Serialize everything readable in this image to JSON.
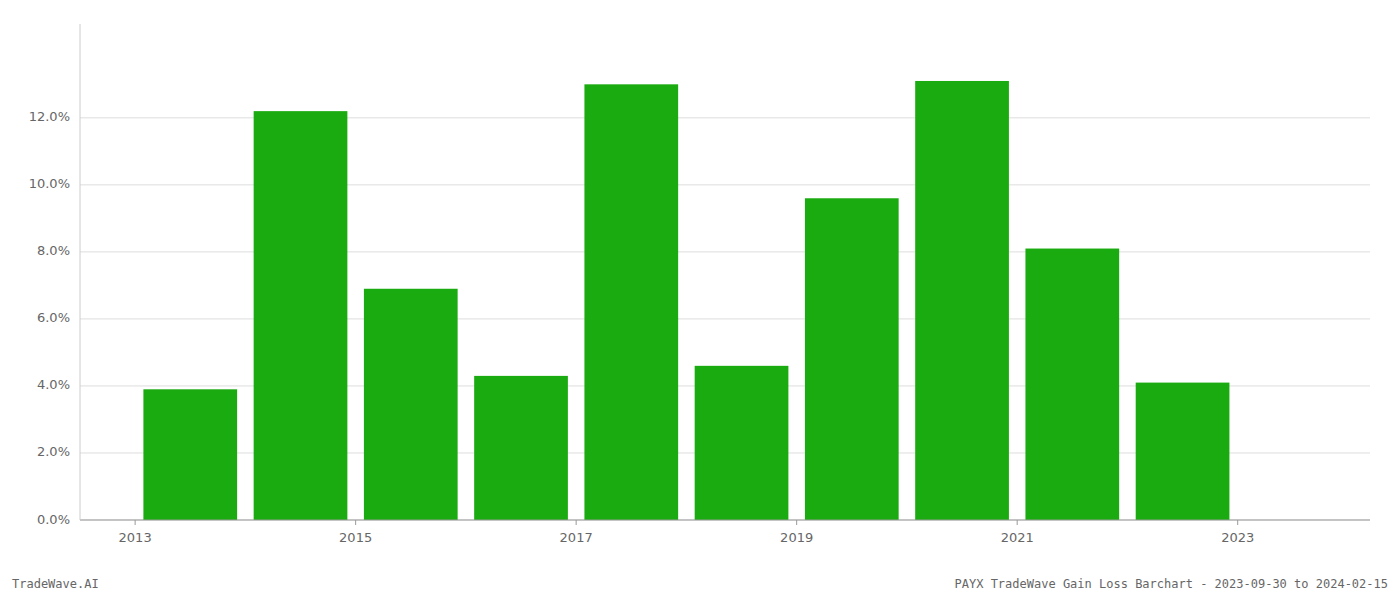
{
  "chart_data": {
    "type": "bar",
    "x": [
      2013.5,
      2014.5,
      2015.5,
      2016.5,
      2017.5,
      2018.5,
      2019.5,
      2020.5,
      2021.5,
      2022.5,
      2023.5
    ],
    "values": [
      0.039,
      0.122,
      0.069,
      0.043,
      0.13,
      0.046,
      0.096,
      0.131,
      0.081,
      0.041,
      0.0
    ],
    "color": "#1aab10",
    "xlim": [
      2012.5,
      2024.2
    ],
    "xticks": [
      2013,
      2015,
      2017,
      2019,
      2021,
      2023
    ],
    "ylim": [
      0,
      0.148
    ],
    "yticks": [
      {
        "value": 0.0,
        "label": "0.0%"
      },
      {
        "value": 0.02,
        "label": "2.0%"
      },
      {
        "value": 0.04,
        "label": "4.0%"
      },
      {
        "value": 0.06,
        "label": "6.0%"
      },
      {
        "value": 0.08,
        "label": "8.0%"
      },
      {
        "value": 0.1,
        "label": "10.0%"
      },
      {
        "value": 0.12,
        "label": "12.0%"
      }
    ],
    "grid": true,
    "annotations": [
      "TradeWave.AI",
      "PAYX TradeWave Gain Loss Barchart - 2023-09-30 to 2024-02-15"
    ]
  }
}
